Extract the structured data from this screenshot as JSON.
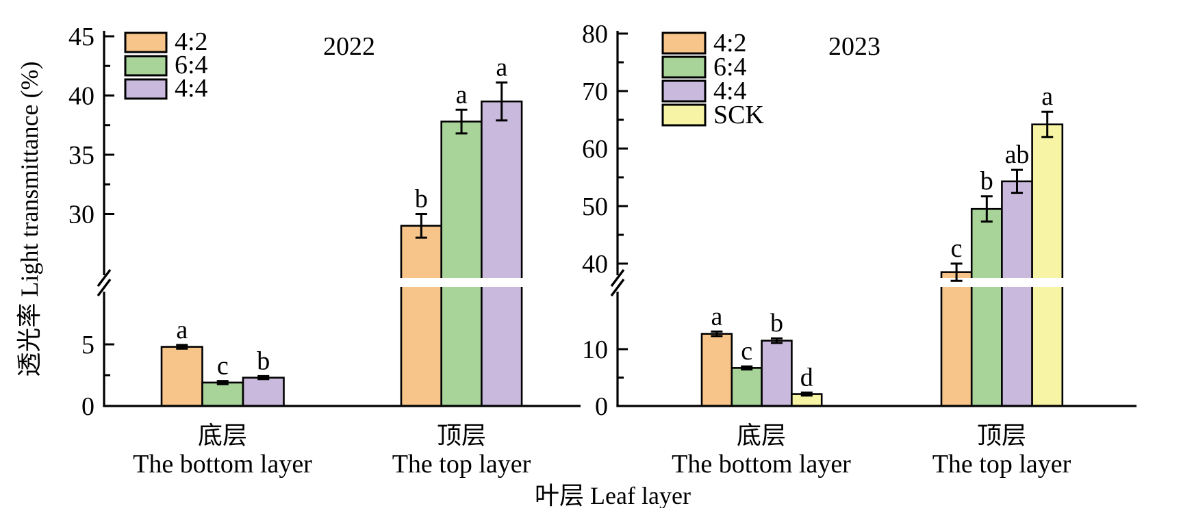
{
  "figure": {
    "y_axis_title": "透光率 Light transmittance (%)",
    "x_axis_title": "叶层 Leaf layer"
  },
  "colors": {
    "treatment_4_2": "#F7C489",
    "treatment_6_4": "#A8D49A",
    "treatment_4_4": "#C9B9DC",
    "treatment_SCK": "#F7F4A5",
    "bar_border": "#000000",
    "axis": "#000000",
    "background": "#FFFFFF"
  },
  "chart_data": [
    {
      "type": "bar",
      "title": "2022",
      "ylabel": "透光率 Light transmittance (%)",
      "xlabel": "叶层 Leaf layer",
      "legend_position": "upper-left-inside",
      "grid": false,
      "ylim": [
        0,
        45
      ],
      "axis_break": {
        "lower_max": 7.5,
        "upper_min": 27.5
      },
      "y_ticks_lower": [
        0,
        5
      ],
      "y_ticks_upper": [
        30,
        35,
        40,
        45
      ],
      "categories": [
        {
          "zh": "底层",
          "en": "The bottom layer"
        },
        {
          "zh": "顶层",
          "en": "The top layer"
        }
      ],
      "legend": [
        "4:2",
        "6:4",
        "4:4"
      ],
      "series": [
        {
          "name": "4:2",
          "values": [
            4.8,
            29.0
          ],
          "errors": [
            0.15,
            1.0
          ],
          "sig_letters": [
            "a",
            "b"
          ]
        },
        {
          "name": "6:4",
          "values": [
            1.9,
            37.8
          ],
          "errors": [
            0.1,
            1.0
          ],
          "sig_letters": [
            "c",
            "a"
          ]
        },
        {
          "name": "4:4",
          "values": [
            2.3,
            39.5
          ],
          "errors": [
            0.12,
            1.6
          ],
          "sig_letters": [
            "b",
            "a"
          ]
        }
      ]
    },
    {
      "type": "bar",
      "title": "2023",
      "ylabel": "透光率 Light transmittance (%)",
      "xlabel": "叶层 Leaf layer",
      "legend_position": "upper-left-inside",
      "grid": false,
      "ylim": [
        0,
        80
      ],
      "axis_break": {
        "lower_max": 17,
        "upper_min": 36
      },
      "y_ticks_lower": [
        0,
        10
      ],
      "y_ticks_upper": [
        40,
        50,
        60,
        70,
        80
      ],
      "categories": [
        {
          "zh": "底层",
          "en": "The bottom layer"
        },
        {
          "zh": "顶层",
          "en": "The top layer"
        }
      ],
      "legend": [
        "4:2",
        "6:4",
        "4:4",
        "SCK"
      ],
      "series": [
        {
          "name": "4:2",
          "values": [
            12.7,
            38.5
          ],
          "errors": [
            0.4,
            1.5
          ],
          "sig_letters": [
            "a",
            "c"
          ]
        },
        {
          "name": "6:4",
          "values": [
            6.7,
            49.5
          ],
          "errors": [
            0.25,
            2.2
          ],
          "sig_letters": [
            "c",
            "b"
          ]
        },
        {
          "name": "4:4",
          "values": [
            11.5,
            54.3
          ],
          "errors": [
            0.4,
            2.0
          ],
          "sig_letters": [
            "b",
            "ab"
          ]
        },
        {
          "name": "SCK",
          "values": [
            2.1,
            64.2
          ],
          "errors": [
            0.15,
            2.2
          ],
          "sig_letters": [
            "d",
            "a"
          ]
        }
      ]
    }
  ]
}
